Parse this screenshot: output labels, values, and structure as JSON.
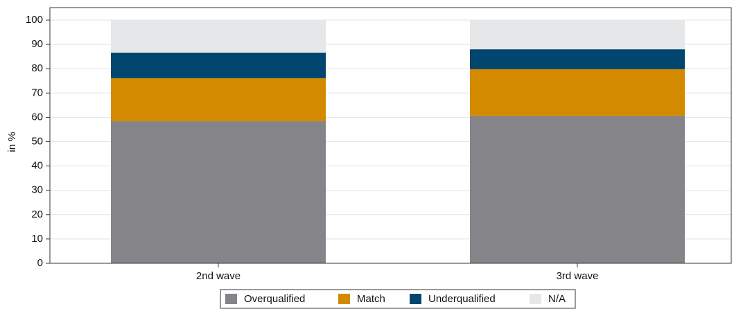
{
  "chart_data": {
    "type": "stacked_bar",
    "categories": [
      "2nd wave",
      "3rd wave"
    ],
    "series": [
      {
        "name": "Overqualified",
        "color": "#858589",
        "values": [
          58.4,
          60.7
        ]
      },
      {
        "name": "Match",
        "color": "#d48a00",
        "values": [
          17.7,
          19.1
        ]
      },
      {
        "name": "Underqualified",
        "color": "#00466e",
        "values": [
          10.5,
          8.2
        ]
      },
      {
        "name": "N/A",
        "color": "#e6e7e8",
        "values": [
          13.4,
          12.0
        ]
      }
    ],
    "ylabel": "in %",
    "ylim": [
      0,
      100
    ],
    "yticks": [
      0,
      10,
      20,
      30,
      40,
      50,
      60,
      70,
      80,
      90,
      100
    ],
    "grid": true,
    "legend": "bottom"
  }
}
